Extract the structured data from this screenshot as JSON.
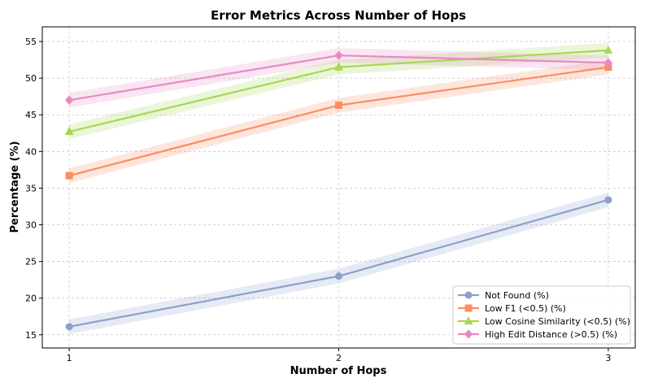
{
  "chart_data": {
    "type": "line",
    "title": "Error Metrics Across Number of Hops",
    "xlabel": "Number of Hops",
    "ylabel": "Percentage (%)",
    "x": [
      1,
      2,
      3
    ],
    "x_ticks": [
      "1",
      "2",
      "3"
    ],
    "y_ticks": [
      "15",
      "20",
      "25",
      "30",
      "35",
      "40",
      "45",
      "50",
      "55"
    ],
    "xlim": [
      0.9,
      3.1
    ],
    "ylim": [
      13.2,
      57.0
    ],
    "grid": true,
    "legend_position": "lower-right",
    "series": [
      {
        "name": "Not Found (%)",
        "values": [
          16.1,
          23.0,
          33.4
        ],
        "color": "#8da0cb",
        "marker": "circle",
        "band": 1.0
      },
      {
        "name": "Low F1 (<0.5) (%)",
        "values": [
          36.7,
          46.3,
          51.5
        ],
        "color": "#fc8d62",
        "marker": "square",
        "band": 1.0
      },
      {
        "name": "Low Cosine Similarity (<0.5) (%)",
        "values": [
          42.7,
          51.5,
          53.8
        ],
        "color": "#a6d854",
        "marker": "triangle",
        "band": 1.0
      },
      {
        "name": "High Edit Distance (>0.5) (%)",
        "values": [
          47.0,
          53.1,
          52.1
        ],
        "color": "#e78ac3",
        "marker": "diamond",
        "band": 1.0
      }
    ]
  }
}
